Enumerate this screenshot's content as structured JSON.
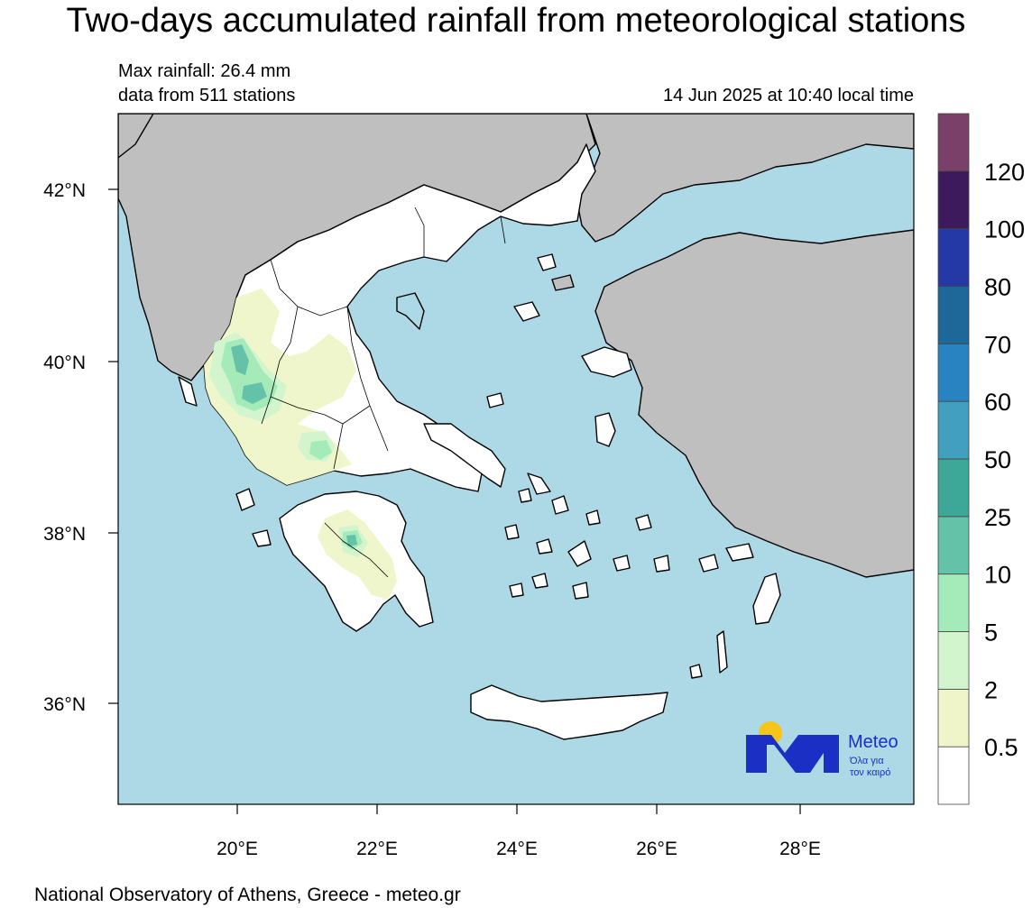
{
  "title": "Two-days accumulated rainfall from meteorological stations",
  "info": {
    "max_rainfall": "Max rainfall: 26.4 mm",
    "stations": "data from 511 stations",
    "timestamp": "14 Jun 2025 at 10:40 local time"
  },
  "axes": {
    "lat_labels": [
      "42°N",
      "40°N",
      "38°N",
      "36°N"
    ],
    "lon_labels": [
      "20°E",
      "22°E",
      "24°E",
      "26°E",
      "28°E"
    ]
  },
  "colorbar": {
    "labels": [
      "0.5",
      "2",
      "5",
      "10",
      "25",
      "50",
      "60",
      "70",
      "80",
      "100",
      "120"
    ],
    "colors": [
      "#ffffff",
      "#eff5c8",
      "#d3f5cd",
      "#a5eab9",
      "#63c2a8",
      "#3ea898",
      "#429fbe",
      "#2a83c1",
      "#1d6799",
      "#2438a6",
      "#3c1a5c",
      "#7b4069"
    ]
  },
  "map_colors": {
    "sea": "#add8e6",
    "land_other": "#bfbfbf",
    "land_greece": "#ffffff"
  },
  "logo": {
    "name": "Meteo",
    "tagline_line1": "Όλα για",
    "tagline_line2": "τον καιρό",
    "colors": {
      "blue": "#1b2fc4",
      "sun": "#f5c518"
    }
  },
  "footer": "National Observatory of Athens, Greece - meteo.gr"
}
